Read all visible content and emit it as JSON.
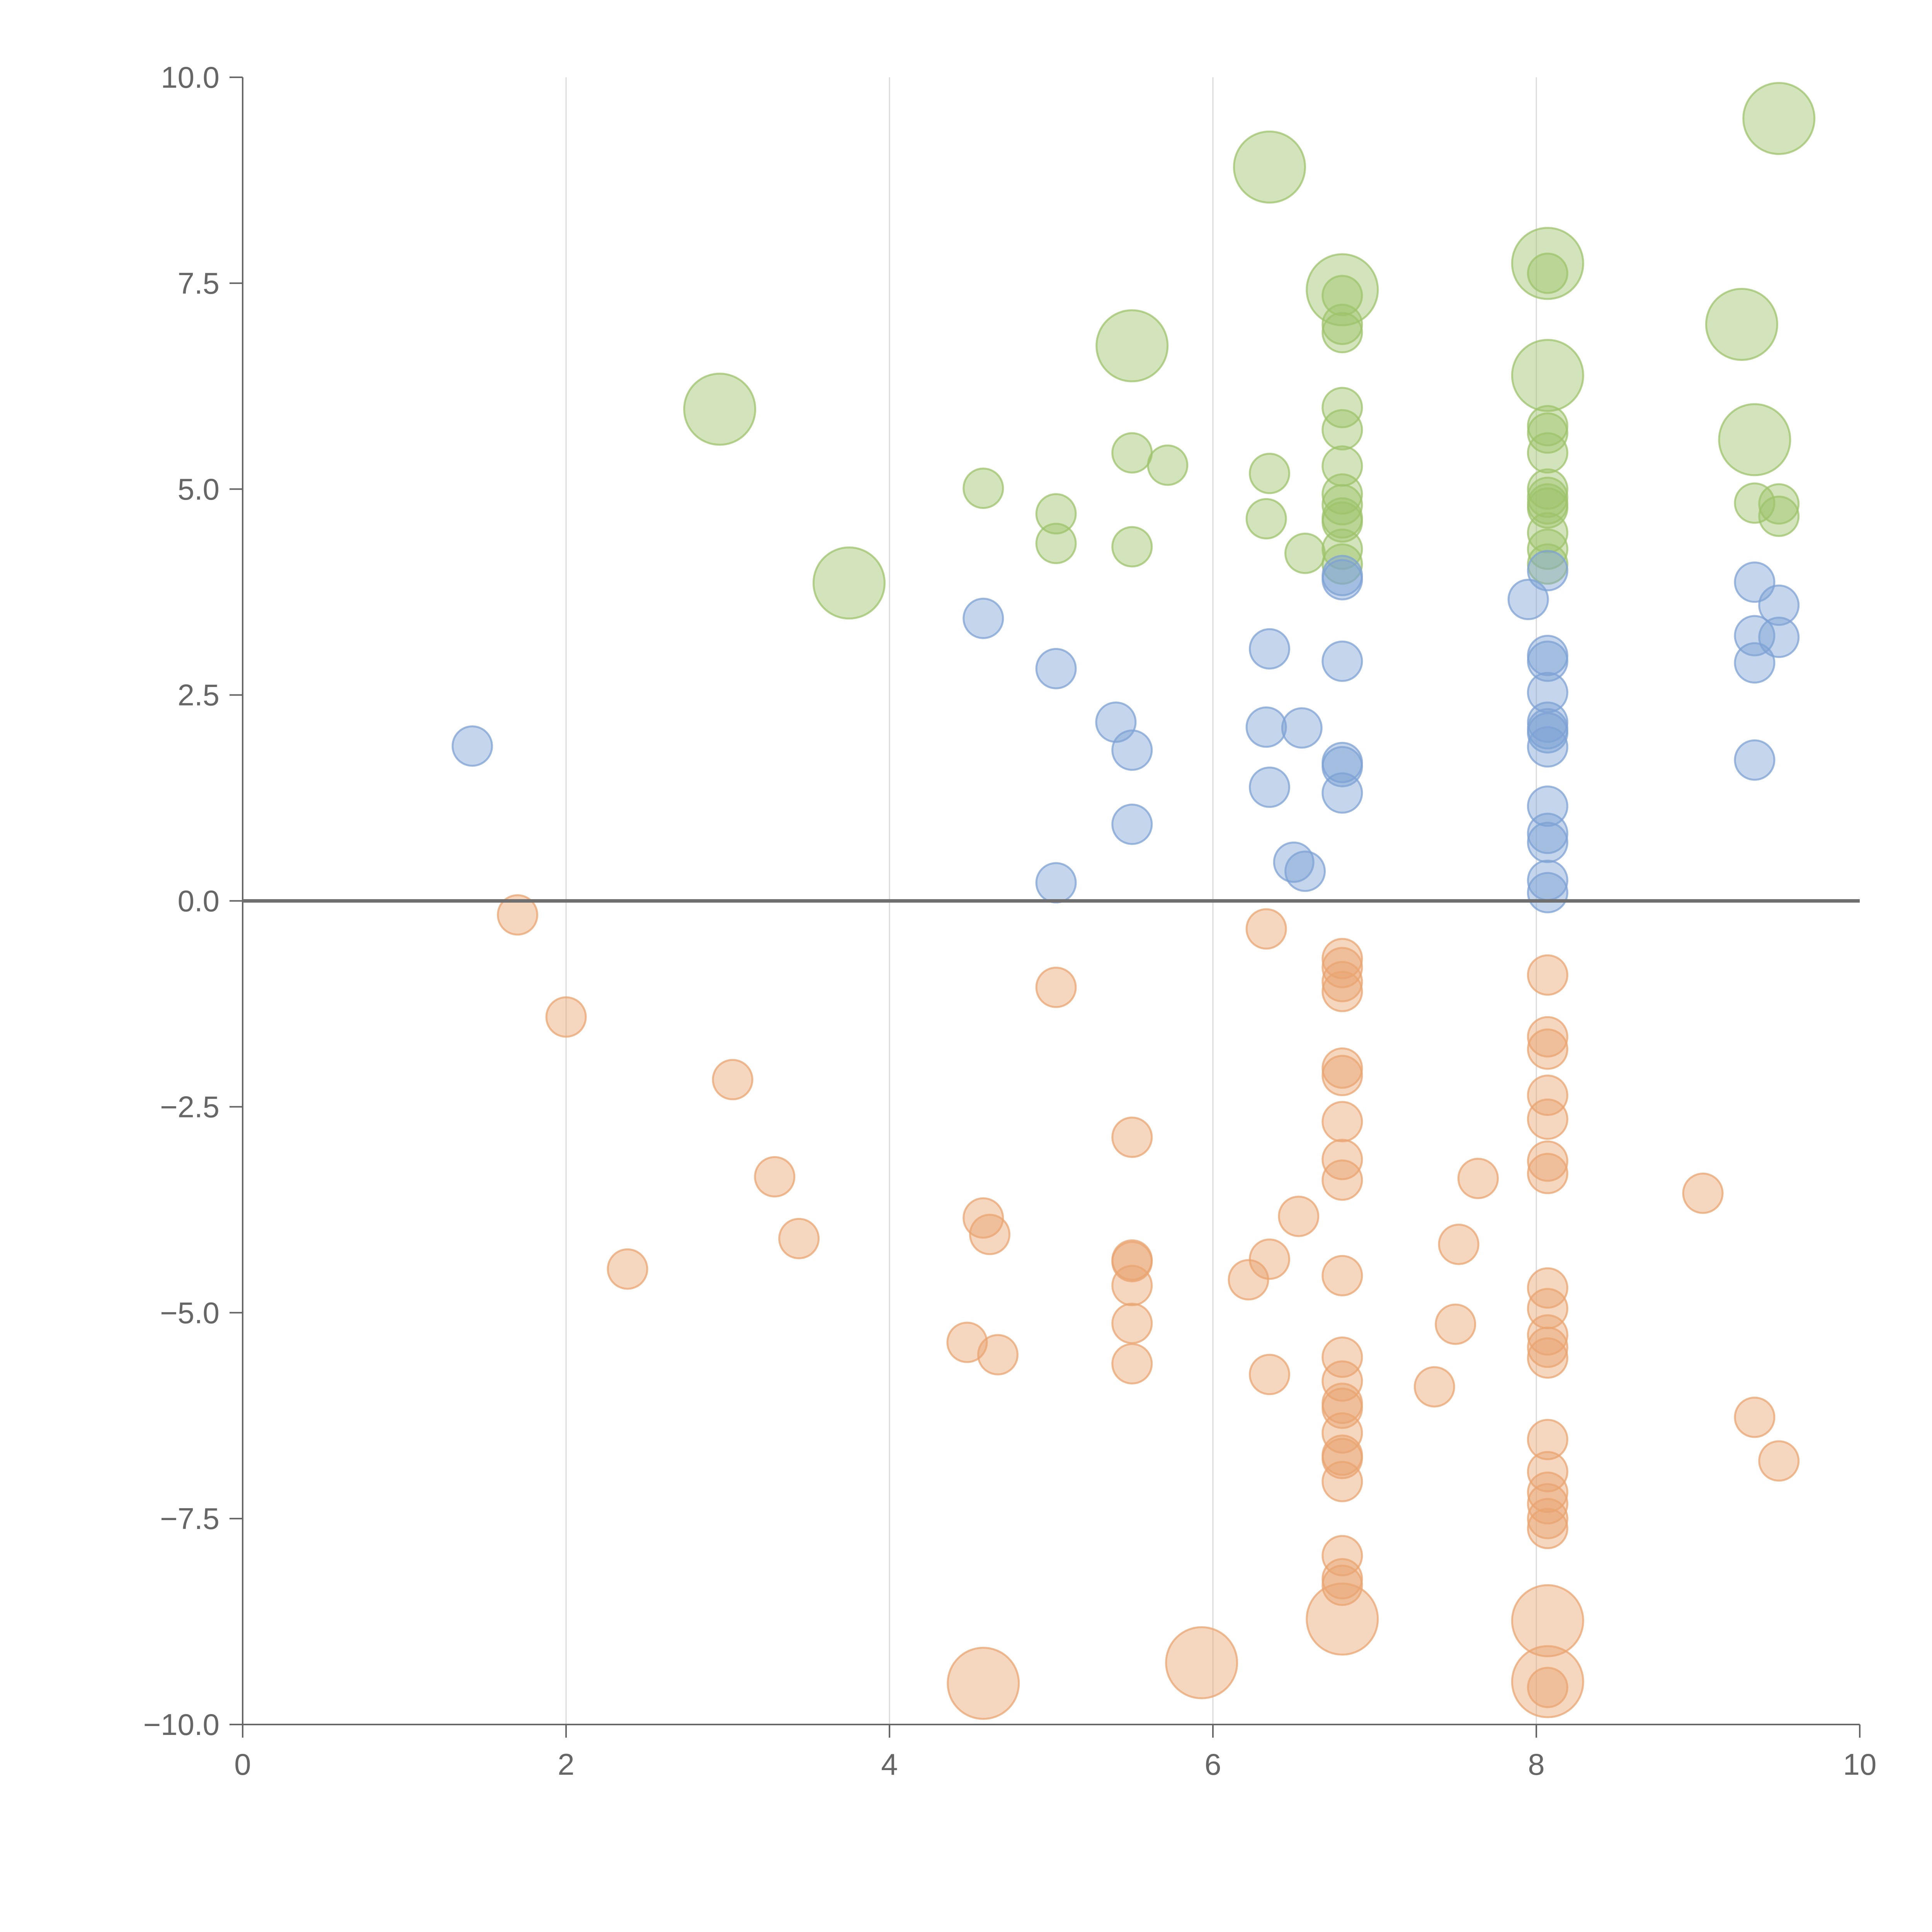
{
  "chart_data": {
    "type": "scatter",
    "title": "",
    "xlabel": "",
    "ylabel": "",
    "xlim": [
      0,
      10
    ],
    "ylim": [
      -10,
      10
    ],
    "x_ticks": [
      0,
      2,
      4,
      6,
      8,
      10
    ],
    "x_tick_labels": [
      "0",
      "2",
      "4",
      "6",
      "8",
      "10"
    ],
    "y_ticks": [
      10,
      7.5,
      5,
      2.5,
      0,
      -2.5,
      -5,
      -7.5,
      -10
    ],
    "y_tick_labels": [
      "10.0",
      "7.5",
      "5.0",
      "2.5",
      "0.0",
      "−2.5",
      "−5.0",
      "−7.5",
      "−10.0"
    ],
    "grid": "vertical",
    "zero_line": 0,
    "series": [
      {
        "name": "green",
        "color": "#9dc36b",
        "points": [
          [
            2.95,
            5.97,
            2
          ],
          [
            3.75,
            3.86,
            2
          ],
          [
            5.5,
            6.74,
            2
          ],
          [
            6.35,
            8.91,
            2
          ],
          [
            6.8,
            7.42,
            2
          ],
          [
            8.07,
            7.74,
            2
          ],
          [
            8.07,
            6.38,
            2
          ],
          [
            9.27,
            7.0,
            2
          ],
          [
            9.35,
            5.6,
            2
          ],
          [
            9.5,
            9.5,
            2
          ],
          [
            4.58,
            5.01,
            1
          ],
          [
            5.03,
            4.7,
            1
          ],
          [
            5.03,
            4.34,
            1
          ],
          [
            5.5,
            5.44,
            1
          ],
          [
            5.5,
            4.3,
            1
          ],
          [
            5.72,
            5.29,
            1
          ],
          [
            6.35,
            5.19,
            1
          ],
          [
            6.33,
            4.64,
            1
          ],
          [
            6.57,
            4.22,
            1
          ],
          [
            6.8,
            7.35,
            1
          ],
          [
            6.8,
            7.0,
            1
          ],
          [
            6.8,
            6.9,
            1
          ],
          [
            6.8,
            5.99,
            1
          ],
          [
            6.8,
            5.72,
            1
          ],
          [
            6.8,
            5.28,
            1
          ],
          [
            6.8,
            4.94,
            1
          ],
          [
            6.8,
            4.81,
            1
          ],
          [
            6.8,
            4.65,
            1
          ],
          [
            6.8,
            4.6,
            1
          ],
          [
            6.8,
            4.27,
            1
          ],
          [
            6.8,
            4.09,
            1
          ],
          [
            8.07,
            7.62,
            1
          ],
          [
            8.07,
            5.77,
            1
          ],
          [
            8.07,
            5.68,
            1
          ],
          [
            8.07,
            5.44,
            1
          ],
          [
            8.07,
            5.0,
            1
          ],
          [
            8.07,
            4.9,
            1
          ],
          [
            8.07,
            4.82,
            1
          ],
          [
            8.07,
            4.77,
            1
          ],
          [
            8.07,
            4.47,
            1
          ],
          [
            8.07,
            4.27,
            1
          ],
          [
            8.07,
            4.09,
            1
          ],
          [
            9.35,
            4.83,
            1
          ],
          [
            9.5,
            4.82,
            1
          ],
          [
            9.5,
            4.67,
            1
          ]
        ]
      },
      {
        "name": "blue",
        "color": "#7da2d4",
        "points": [
          [
            1.42,
            1.88,
            1
          ],
          [
            4.58,
            3.43,
            1
          ],
          [
            5.03,
            2.82,
            1
          ],
          [
            5.4,
            2.17,
            1
          ],
          [
            5.5,
            1.83,
            1
          ],
          [
            5.5,
            0.93,
            1
          ],
          [
            5.03,
            0.22,
            1
          ],
          [
            6.35,
            3.06,
            1
          ],
          [
            6.33,
            2.11,
            1
          ],
          [
            6.55,
            2.1,
            1
          ],
          [
            6.35,
            1.38,
            1
          ],
          [
            6.5,
            0.47,
            1
          ],
          [
            6.57,
            0.36,
            1
          ],
          [
            6.8,
            3.95,
            1
          ],
          [
            6.8,
            3.9,
            1
          ],
          [
            6.8,
            2.91,
            1
          ],
          [
            6.8,
            1.68,
            1
          ],
          [
            6.8,
            1.63,
            1
          ],
          [
            6.8,
            1.31,
            1
          ],
          [
            7.95,
            3.66,
            1
          ],
          [
            8.07,
            4.01,
            1
          ],
          [
            8.07,
            2.98,
            1
          ],
          [
            8.07,
            2.91,
            1
          ],
          [
            8.07,
            2.53,
            1
          ],
          [
            8.07,
            2.17,
            1
          ],
          [
            8.07,
            2.09,
            1
          ],
          [
            8.07,
            2.04,
            1
          ],
          [
            8.07,
            1.87,
            1
          ],
          [
            8.07,
            1.15,
            1
          ],
          [
            8.07,
            0.82,
            1
          ],
          [
            8.07,
            0.71,
            1
          ],
          [
            8.07,
            0.25,
            1
          ],
          [
            8.07,
            0.1,
            1
          ],
          [
            9.35,
            3.87,
            1
          ],
          [
            9.35,
            3.22,
            1
          ],
          [
            9.35,
            2.89,
            1
          ],
          [
            9.35,
            1.71,
            1
          ],
          [
            9.5,
            3.59,
            1
          ],
          [
            9.5,
            3.2,
            1
          ]
        ]
      },
      {
        "name": "orange",
        "color": "#e9a470",
        "points": [
          [
            1.7,
            -0.17,
            1
          ],
          [
            2.0,
            -1.41,
            1
          ],
          [
            3.03,
            -2.17,
            1
          ],
          [
            2.38,
            -4.47,
            1
          ],
          [
            3.29,
            -3.35,
            1
          ],
          [
            3.44,
            -4.1,
            1
          ],
          [
            4.58,
            -3.85,
            1
          ],
          [
            4.62,
            -4.05,
            1
          ],
          [
            4.48,
            -5.36,
            1
          ],
          [
            4.67,
            -5.51,
            1
          ],
          [
            4.58,
            -9.5,
            2
          ],
          [
            5.03,
            -1.05,
            1
          ],
          [
            5.5,
            -2.87,
            1
          ],
          [
            5.5,
            -4.36,
            1
          ],
          [
            5.5,
            -4.38,
            1
          ],
          [
            5.5,
            -4.67,
            1
          ],
          [
            5.5,
            -5.13,
            1
          ],
          [
            5.5,
            -5.62,
            1
          ],
          [
            5.93,
            -9.25,
            2
          ],
          [
            6.33,
            -0.34,
            1
          ],
          [
            6.22,
            -4.6,
            1
          ],
          [
            6.35,
            -4.35,
            1
          ],
          [
            6.35,
            -5.75,
            1
          ],
          [
            6.53,
            -3.83,
            1
          ],
          [
            6.8,
            -0.7,
            1
          ],
          [
            6.8,
            -0.81,
            1
          ],
          [
            6.8,
            -0.98,
            1
          ],
          [
            6.8,
            -1.1,
            1
          ],
          [
            6.8,
            -2.03,
            1
          ],
          [
            6.8,
            -2.12,
            1
          ],
          [
            6.8,
            -2.68,
            1
          ],
          [
            6.8,
            -3.14,
            1
          ],
          [
            6.8,
            -3.39,
            1
          ],
          [
            6.8,
            -4.55,
            1
          ],
          [
            6.8,
            -5.54,
            1
          ],
          [
            6.8,
            -5.83,
            1
          ],
          [
            6.8,
            -6.1,
            1
          ],
          [
            6.8,
            -6.16,
            1
          ],
          [
            6.8,
            -6.46,
            1
          ],
          [
            6.8,
            -6.73,
            1
          ],
          [
            6.8,
            -6.77,
            1
          ],
          [
            6.8,
            -7.05,
            1
          ],
          [
            6.8,
            -7.95,
            1
          ],
          [
            6.8,
            -8.23,
            1
          ],
          [
            6.8,
            -8.31,
            1
          ],
          [
            6.8,
            -8.72,
            2
          ],
          [
            7.37,
            -5.9,
            1
          ],
          [
            7.5,
            -5.14,
            1
          ],
          [
            7.52,
            -4.17,
            1
          ],
          [
            7.64,
            -3.37,
            1
          ],
          [
            8.07,
            -0.9,
            1
          ],
          [
            8.07,
            -1.65,
            1
          ],
          [
            8.07,
            -1.8,
            1
          ],
          [
            8.07,
            -2.36,
            1
          ],
          [
            8.07,
            -2.65,
            1
          ],
          [
            8.07,
            -3.16,
            1
          ],
          [
            8.07,
            -3.31,
            1
          ],
          [
            8.07,
            -4.7,
            1
          ],
          [
            8.07,
            -4.95,
            1
          ],
          [
            8.07,
            -5.27,
            1
          ],
          [
            8.07,
            -5.42,
            1
          ],
          [
            8.07,
            -5.55,
            1
          ],
          [
            8.07,
            -6.54,
            1
          ],
          [
            8.07,
            -6.93,
            1
          ],
          [
            8.07,
            -7.18,
            1
          ],
          [
            8.07,
            -7.32,
            1
          ],
          [
            8.07,
            -7.5,
            1
          ],
          [
            8.07,
            -7.62,
            1
          ],
          [
            8.07,
            -8.74,
            2
          ],
          [
            8.07,
            -9.48,
            2
          ],
          [
            8.07,
            -9.55,
            1
          ],
          [
            9.03,
            -3.55,
            1
          ],
          [
            9.35,
            -6.27,
            1
          ],
          [
            9.5,
            -6.8,
            1
          ]
        ]
      }
    ]
  }
}
